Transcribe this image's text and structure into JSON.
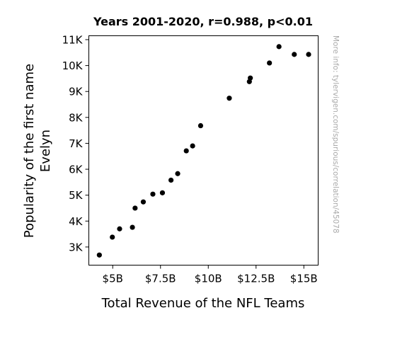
{
  "chart_data": {
    "type": "scatter",
    "title": "Years 2001-2020, r=0.988, p<0.01",
    "xlabel": "Total Revenue of the NFL Teams",
    "ylabel_lines": [
      "Popularity of the first name",
      "Evelyn"
    ],
    "watermark": "More info: tylervigen.com/spurious/correlation/45078",
    "xlim": [
      3.75,
      15.75
    ],
    "ylim": [
      2300,
      11150
    ],
    "x_ticks": [
      5,
      7.5,
      10,
      12.5,
      15
    ],
    "x_tick_labels": [
      "$5B",
      "$7.5B",
      "$10B",
      "$12.5B",
      "$15B"
    ],
    "y_ticks": [
      3000,
      4000,
      5000,
      6000,
      7000,
      8000,
      9000,
      10000,
      11000
    ],
    "y_tick_labels": [
      "3K",
      "4K",
      "5K",
      "6K",
      "7K",
      "8K",
      "9K",
      "10K",
      "11K"
    ],
    "grid": false,
    "marker_color": "#000000",
    "points": [
      {
        "x": 4.3,
        "y": 2690
      },
      {
        "x": 4.98,
        "y": 3380
      },
      {
        "x": 5.36,
        "y": 3700
      },
      {
        "x": 6.03,
        "y": 3760
      },
      {
        "x": 6.17,
        "y": 4500
      },
      {
        "x": 6.6,
        "y": 4740
      },
      {
        "x": 7.1,
        "y": 5040
      },
      {
        "x": 7.6,
        "y": 5090
      },
      {
        "x": 8.05,
        "y": 5580
      },
      {
        "x": 8.4,
        "y": 5830
      },
      {
        "x": 8.85,
        "y": 6710
      },
      {
        "x": 9.18,
        "y": 6900
      },
      {
        "x": 9.6,
        "y": 7680
      },
      {
        "x": 11.1,
        "y": 8740
      },
      {
        "x": 12.15,
        "y": 9380
      },
      {
        "x": 12.2,
        "y": 9520
      },
      {
        "x": 13.2,
        "y": 10100
      },
      {
        "x": 13.7,
        "y": 10730
      },
      {
        "x": 14.5,
        "y": 10430
      },
      {
        "x": 15.25,
        "y": 10430
      }
    ]
  }
}
